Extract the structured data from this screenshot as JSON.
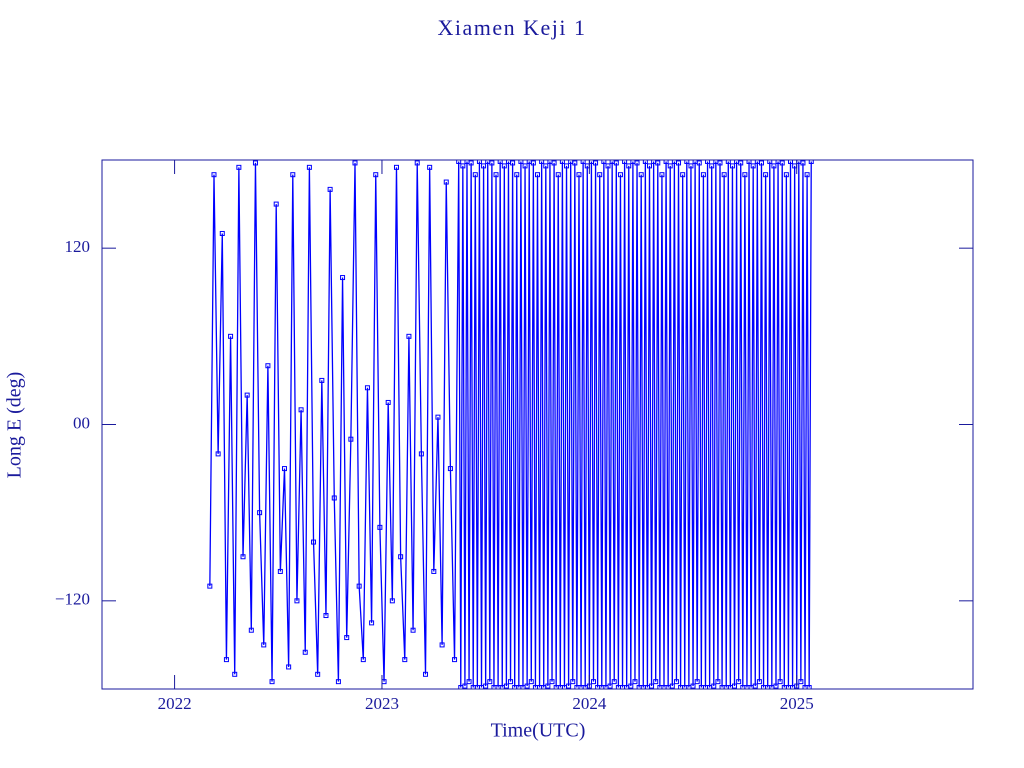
{
  "chart_data": {
    "type": "line",
    "title": "Xiamen Keji 1",
    "x_label": "Time(UTC)",
    "y_label": "Long E (deg)",
    "xlim": [
      2021.65,
      2025.85
    ],
    "xticks": [
      2022,
      2023,
      2024,
      2025
    ],
    "ylim": [
      -180,
      180
    ],
    "yticks": [
      {
        "value": -120,
        "label": "−120"
      },
      {
        "value": 0,
        "label": "00"
      },
      120
    ],
    "markers": "square",
    "axis_color": "#1a1a9c",
    "series": [
      {
        "color": "#0000ff",
        "x": [
          2022.17,
          2022.19,
          2022.21,
          2022.23,
          2022.25,
          2022.27,
          2022.29,
          2022.31,
          2022.33,
          2022.35,
          2022.37,
          2022.39,
          2022.41,
          2022.43,
          2022.45,
          2022.47,
          2022.49,
          2022.51,
          2022.53,
          2022.55,
          2022.57,
          2022.59,
          2022.61,
          2022.63,
          2022.65,
          2022.67,
          2022.69,
          2022.71,
          2022.73,
          2022.75,
          2022.77,
          2022.79,
          2022.81,
          2022.83,
          2022.85,
          2022.87,
          2022.89,
          2022.91,
          2022.93,
          2022.95,
          2022.97,
          2022.99,
          2023.01,
          2023.03,
          2023.05,
          2023.07,
          2023.09,
          2023.11,
          2023.13,
          2023.15,
          2023.17,
          2023.19,
          2023.21,
          2023.23,
          2023.25,
          2023.27,
          2023.29,
          2023.31,
          2023.33,
          2023.35,
          2023.37,
          2023.38,
          2023.39,
          2023.4,
          2023.41,
          2023.42,
          2023.43,
          2023.44,
          2023.45,
          2023.46,
          2023.47,
          2023.48,
          2023.49,
          2023.5,
          2023.51,
          2023.52,
          2023.53,
          2023.54,
          2023.55,
          2023.56,
          2023.57,
          2023.58,
          2023.59,
          2023.6,
          2023.61,
          2023.62,
          2023.63,
          2023.64,
          2023.65,
          2023.66,
          2023.67,
          2023.68,
          2023.69,
          2023.7,
          2023.71,
          2023.72,
          2023.73,
          2023.74,
          2023.75,
          2023.76,
          2023.77,
          2023.78,
          2023.79,
          2023.8,
          2023.81,
          2023.82,
          2023.83,
          2023.84,
          2023.85,
          2023.86,
          2023.87,
          2023.88,
          2023.89,
          2023.9,
          2023.91,
          2023.92,
          2023.93,
          2023.94,
          2023.95,
          2023.96,
          2023.97,
          2023.98,
          2023.99,
          2024.0,
          2024.01,
          2024.02,
          2024.03,
          2024.04,
          2024.05,
          2024.06,
          2024.07,
          2024.08,
          2024.09,
          2024.1,
          2024.11,
          2024.12,
          2024.13,
          2024.14,
          2024.15,
          2024.16,
          2024.17,
          2024.18,
          2024.19,
          2024.2,
          2024.21,
          2024.22,
          2024.23,
          2024.24,
          2024.25,
          2024.26,
          2024.27,
          2024.28,
          2024.29,
          2024.3,
          2024.31,
          2024.32,
          2024.33,
          2024.34,
          2024.35,
          2024.36,
          2024.37,
          2024.38,
          2024.39,
          2024.4,
          2024.41,
          2024.42,
          2024.43,
          2024.44,
          2024.45,
          2024.46,
          2024.47,
          2024.48,
          2024.49,
          2024.5,
          2024.51,
          2024.52,
          2024.53,
          2024.54,
          2024.55,
          2024.56,
          2024.57,
          2024.58,
          2024.59,
          2024.6,
          2024.61,
          2024.62,
          2024.63,
          2024.64,
          2024.65,
          2024.66,
          2024.67,
          2024.68,
          2024.69,
          2024.7,
          2024.71,
          2024.72,
          2024.73,
          2024.74,
          2024.75,
          2024.76,
          2024.77,
          2024.78,
          2024.79,
          2024.8,
          2024.81,
          2024.82,
          2024.83,
          2024.84,
          2024.85,
          2024.86,
          2024.87,
          2024.88,
          2024.89,
          2024.9,
          2024.91,
          2024.92,
          2024.93,
          2024.94,
          2024.95,
          2024.96,
          2024.97,
          2024.98,
          2024.99,
          2025.0,
          2025.01,
          2025.02,
          2025.03,
          2025.04,
          2025.05,
          2025.06,
          2025.07
        ],
        "values": [
          -110,
          170,
          -20,
          130,
          -160,
          60,
          -170,
          175,
          -90,
          20,
          -140,
          178,
          -60,
          -150,
          40,
          -175,
          150,
          -100,
          -30,
          -165,
          170,
          -120,
          10,
          -155,
          175,
          -80,
          -170,
          30,
          -130,
          160,
          -50,
          -175,
          100,
          -145,
          -10,
          178,
          -110,
          -160,
          25,
          -135,
          170,
          -70,
          -175,
          15,
          -120,
          175,
          -90,
          -160,
          60,
          -140,
          178,
          -20,
          -170,
          175,
          -100,
          5,
          -150,
          165,
          -30,
          -160,
          179,
          -179,
          176,
          -178,
          179,
          -175,
          178,
          -179,
          170,
          -179,
          179,
          -179,
          176,
          -178,
          179,
          -175,
          178,
          -179,
          170,
          -179,
          179,
          -179,
          176,
          -178,
          179,
          -175,
          178,
          -179,
          170,
          -179,
          179,
          -179,
          176,
          -178,
          179,
          -175,
          178,
          -179,
          170,
          -179,
          179,
          -179,
          176,
          -178,
          179,
          -175,
          178,
          -179,
          170,
          -179,
          179,
          -179,
          176,
          -178,
          179,
          -175,
          178,
          -179,
          170,
          -179,
          179,
          -179,
          176,
          -178,
          179,
          -175,
          178,
          -179,
          170,
          -179,
          179,
          -179,
          176,
          -178,
          179,
          -175,
          178,
          -179,
          170,
          -179,
          179,
          -179,
          176,
          -178,
          179,
          -175,
          178,
          -179,
          170,
          -179,
          179,
          -179,
          176,
          -178,
          179,
          -175,
          178,
          -179,
          170,
          -179,
          179,
          -179,
          176,
          -178,
          179,
          -175,
          178,
          -179,
          170,
          -179,
          179,
          -179,
          176,
          -178,
          179,
          -175,
          178,
          -179,
          170,
          -179,
          179,
          -179,
          176,
          -178,
          179,
          -175,
          178,
          -179,
          170,
          -179,
          179,
          -179,
          176,
          -178,
          179,
          -175,
          178,
          -179,
          170,
          -179,
          179,
          -179,
          176,
          -178,
          179,
          -175,
          178,
          -179,
          170,
          -179,
          179,
          -179,
          176,
          -178,
          179,
          -175,
          178,
          -179,
          170,
          -179,
          179,
          -179,
          176,
          -178,
          179,
          -175,
          178,
          -179,
          170,
          -179,
          179
        ]
      }
    ]
  }
}
